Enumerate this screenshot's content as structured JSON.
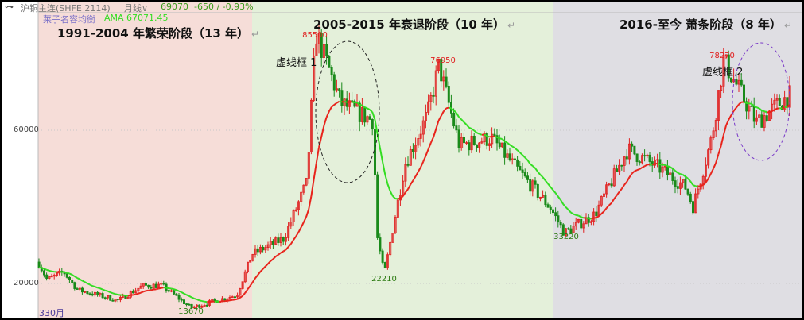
{
  "header": {
    "instrument": "沪铜主连(SHFE 2114)",
    "period": "月线",
    "last_price": "69070",
    "change": "-650 / -0.93%",
    "indicator_name": "莱子名容均衡",
    "indicator_value": "AMA 67071.45",
    "price_color": "#3a9a1a"
  },
  "phases": [
    {
      "title": "1991-2004 年繁荣阶段（13 年）",
      "color": "#f6ddd8"
    },
    {
      "title": "2005-2015 年衰退阶段（10 年）",
      "color": "#e4f0da"
    },
    {
      "title": "2016-至今 萧条阶段（8 年）",
      "color": "#dfdee3"
    }
  ],
  "annotations": {
    "box1": "虚线框 1",
    "box2": "虚线框 2",
    "return_mark": "↵"
  },
  "footer": {
    "bar_count": "330月"
  },
  "chart_data": {
    "type": "candlestick",
    "y_ticks": [
      "60000",
      "20000"
    ],
    "ylim": [
      11000,
      90000
    ],
    "grid": true,
    "up_color": "#e02020",
    "down_color": "#1a8a1a",
    "ama_rising_color": "#e8231b",
    "ama_falling_color": "#33dd22",
    "labeled_points": [
      {
        "label": "85500",
        "type": "high",
        "color": "#e02020"
      },
      {
        "label": "22210",
        "type": "low",
        "color": "#2a7a10"
      },
      {
        "label": "76950",
        "type": "high",
        "color": "#e02020"
      },
      {
        "label": "33220",
        "type": "low",
        "color": "#2a7a10"
      },
      {
        "label": "78270",
        "type": "high",
        "color": "#e02020"
      },
      {
        "label": "13670",
        "type": "low",
        "color": "#2a7a10"
      }
    ],
    "approx_price_path": [
      [
        "1991-01",
        25600
      ],
      [
        "1991-08",
        21000
      ],
      [
        "1992-09",
        23000
      ],
      [
        "1993-08",
        18300
      ],
      [
        "1996-04",
        15600
      ],
      [
        "1997-11",
        19400
      ],
      [
        "1999-02",
        19500
      ],
      [
        "2001-01",
        13670
      ],
      [
        "2004-01",
        17000
      ],
      [
        "2005-01",
        27700
      ],
      [
        "2006-03",
        31800
      ],
      [
        "2007-01",
        46300
      ],
      [
        "2007-05",
        85500
      ],
      [
        "2008-04",
        67000
      ],
      [
        "2009-06",
        62500
      ],
      [
        "2009-08",
        32000
      ],
      [
        "2009-11",
        22210
      ],
      [
        "2010-08",
        51000
      ],
      [
        "2011-06",
        64000
      ],
      [
        "2011-11",
        76950
      ],
      [
        "2012-08",
        56000
      ],
      [
        "2013-10",
        58000
      ],
      [
        "2014-09",
        50000
      ],
      [
        "2015-12",
        39700
      ],
      [
        "2016-06",
        33220
      ],
      [
        "2017-07",
        38000
      ],
      [
        "2018-09",
        55000
      ],
      [
        "2019-11",
        50000
      ],
      [
        "2020-10",
        45000
      ],
      [
        "2021-01",
        40000
      ],
      [
        "2021-09",
        58000
      ],
      [
        "2022-02",
        78270
      ],
      [
        "2023-04",
        62000
      ],
      [
        "2024-06",
        69070
      ]
    ]
  }
}
